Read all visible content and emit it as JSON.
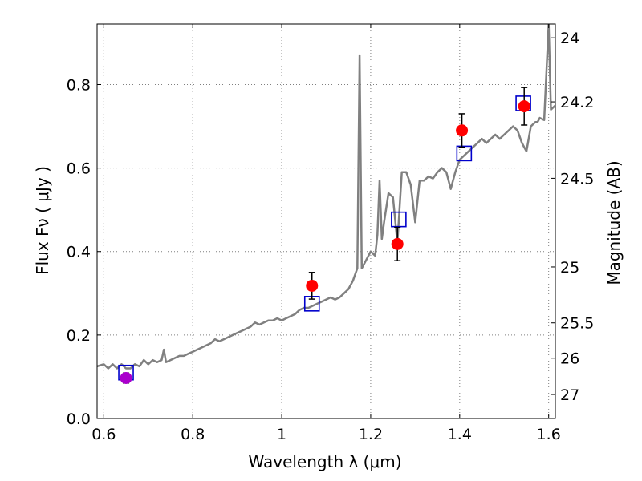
{
  "chart_data": {
    "type": "scatter",
    "title": "",
    "xlabel": "Wavelength  λ (μm)",
    "ylabel": "Flux  Fν  ( μJy )",
    "ylabel_right": "Magnitude (AB)",
    "xlim": [
      0.585,
      1.615
    ],
    "ylim": [
      0.0,
      0.945
    ],
    "grid": true,
    "legend": "none",
    "x_ticks": [
      {
        "value": 0.6,
        "label": "0.6"
      },
      {
        "value": 0.8,
        "label": "0.8"
      },
      {
        "value": 1.0,
        "label": "1"
      },
      {
        "value": 1.2,
        "label": "1.2"
      },
      {
        "value": 1.4,
        "label": "1.4"
      },
      {
        "value": 1.6,
        "label": "1.6"
      }
    ],
    "y_ticks": [
      {
        "value": 0.0,
        "label": "0.0"
      },
      {
        "value": 0.2,
        "label": "0.2"
      },
      {
        "value": 0.4,
        "label": "0.4"
      },
      {
        "value": 0.6,
        "label": "0.6"
      },
      {
        "value": 0.8,
        "label": "0.8"
      }
    ],
    "right_ticks": [
      {
        "value": 24,
        "label": "24"
      },
      {
        "value": 24.2,
        "label": "24.2"
      },
      {
        "value": 24.5,
        "label": "24.5"
      },
      {
        "value": 25,
        "label": "25"
      },
      {
        "value": 25.5,
        "label": "25.5"
      },
      {
        "value": 26,
        "label": "26"
      },
      {
        "value": 27,
        "label": "27"
      }
    ],
    "colors": {
      "spectrum": "#808080",
      "observed": "#ff0000",
      "upper_limit_point": "#aa00cc",
      "model_box": "#0000cc",
      "errorbar": "#000000",
      "grid": "#7f7f7f"
    },
    "series": [
      {
        "kind": "model_spectrum",
        "x": [
          0.585,
          0.6,
          0.61,
          0.62,
          0.63,
          0.64,
          0.65,
          0.66,
          0.67,
          0.68,
          0.69,
          0.7,
          0.71,
          0.72,
          0.73,
          0.735,
          0.74,
          0.75,
          0.76,
          0.77,
          0.78,
          0.79,
          0.8,
          0.81,
          0.82,
          0.83,
          0.84,
          0.85,
          0.86,
          0.87,
          0.88,
          0.89,
          0.9,
          0.91,
          0.92,
          0.93,
          0.94,
          0.95,
          0.96,
          0.97,
          0.98,
          0.99,
          1.0,
          1.01,
          1.02,
          1.03,
          1.04,
          1.05,
          1.06,
          1.07,
          1.08,
          1.09,
          1.1,
          1.11,
          1.12,
          1.13,
          1.14,
          1.15,
          1.16,
          1.17,
          1.175,
          1.18,
          1.19,
          1.2,
          1.21,
          1.215,
          1.22,
          1.225,
          1.23,
          1.24,
          1.25,
          1.26,
          1.27,
          1.28,
          1.29,
          1.3,
          1.31,
          1.32,
          1.33,
          1.34,
          1.35,
          1.36,
          1.37,
          1.38,
          1.39,
          1.4,
          1.41,
          1.42,
          1.43,
          1.44,
          1.45,
          1.46,
          1.47,
          1.48,
          1.49,
          1.5,
          1.51,
          1.52,
          1.53,
          1.54,
          1.55,
          1.56,
          1.57,
          1.575,
          1.58,
          1.59,
          1.6,
          1.605,
          1.615
        ],
        "y": [
          0.125,
          0.13,
          0.12,
          0.13,
          0.12,
          0.13,
          0.12,
          0.12,
          0.13,
          0.125,
          0.14,
          0.13,
          0.14,
          0.135,
          0.14,
          0.165,
          0.135,
          0.14,
          0.145,
          0.15,
          0.15,
          0.155,
          0.16,
          0.165,
          0.17,
          0.175,
          0.18,
          0.19,
          0.185,
          0.19,
          0.195,
          0.2,
          0.205,
          0.21,
          0.215,
          0.22,
          0.23,
          0.225,
          0.23,
          0.235,
          0.235,
          0.24,
          0.235,
          0.24,
          0.245,
          0.25,
          0.26,
          0.265,
          0.265,
          0.27,
          0.275,
          0.28,
          0.285,
          0.29,
          0.285,
          0.29,
          0.3,
          0.31,
          0.33,
          0.36,
          0.87,
          0.36,
          0.38,
          0.4,
          0.39,
          0.44,
          0.57,
          0.43,
          0.47,
          0.54,
          0.53,
          0.42,
          0.59,
          0.59,
          0.56,
          0.47,
          0.57,
          0.57,
          0.58,
          0.575,
          0.59,
          0.6,
          0.59,
          0.55,
          0.59,
          0.62,
          0.63,
          0.64,
          0.65,
          0.66,
          0.67,
          0.66,
          0.67,
          0.68,
          0.67,
          0.68,
          0.69,
          0.7,
          0.69,
          0.66,
          0.64,
          0.7,
          0.71,
          0.71,
          0.72,
          0.715,
          0.945,
          0.74,
          0.75
        ]
      },
      {
        "kind": "observed",
        "points": [
          {
            "x": 1.068,
            "y": 0.318,
            "err": 0.032
          },
          {
            "x": 1.26,
            "y": 0.418,
            "err": 0.04
          },
          {
            "x": 1.405,
            "y": 0.69,
            "err": 0.04
          },
          {
            "x": 1.545,
            "y": 0.748,
            "err": 0.045
          }
        ]
      },
      {
        "kind": "observed_faint",
        "points": [
          {
            "x": 0.65,
            "y": 0.097,
            "err": 0.012
          }
        ]
      },
      {
        "kind": "model_photometry",
        "points": [
          {
            "x": 0.65,
            "y": 0.11
          },
          {
            "x": 1.068,
            "y": 0.275
          },
          {
            "x": 1.263,
            "y": 0.477
          },
          {
            "x": 1.41,
            "y": 0.635
          },
          {
            "x": 1.543,
            "y": 0.755
          }
        ]
      }
    ]
  }
}
